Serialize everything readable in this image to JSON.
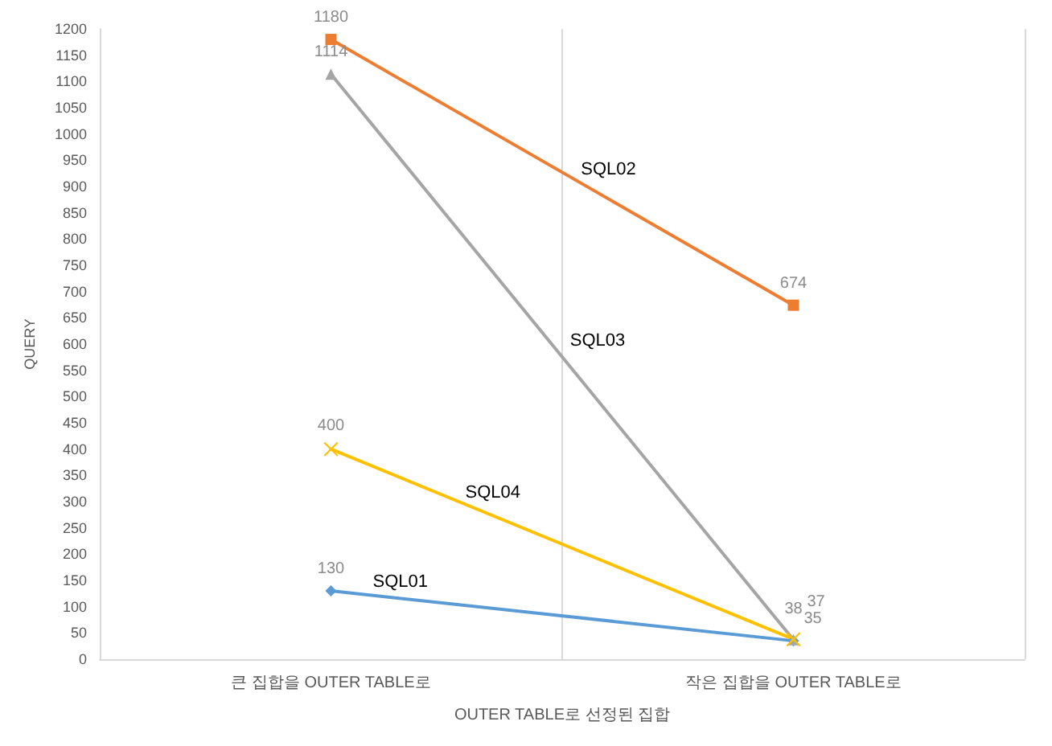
{
  "chart_data": {
    "type": "line",
    "xlabel": "OUTER TABLE로 선정된 집합",
    "ylabel": "QUERY",
    "categories": [
      "큰 집합을 OUTER TABLE로",
      "작은 집합을 OUTER TABLE로"
    ],
    "series": [
      {
        "name": "SQL01",
        "color": "#5b9bd5",
        "marker": "diamond",
        "values": [
          130,
          35
        ]
      },
      {
        "name": "SQL02",
        "color": "#ed7d31",
        "marker": "square",
        "values": [
          1180,
          674
        ]
      },
      {
        "name": "SQL03",
        "color": "#a5a5a5",
        "marker": "triangle",
        "values": [
          1114,
          37
        ]
      },
      {
        "name": "SQL04",
        "color": "#ffc000",
        "marker": "cross",
        "values": [
          400,
          38
        ]
      }
    ],
    "ylim": [
      0,
      1200
    ],
    "yticks": [
      0,
      50,
      100,
      150,
      200,
      250,
      300,
      350,
      400,
      450,
      500,
      550,
      600,
      650,
      700,
      750,
      800,
      850,
      900,
      950,
      1000,
      1050,
      1100,
      1150,
      1200
    ],
    "grid": "x",
    "data_labels": true,
    "legend": false
  }
}
